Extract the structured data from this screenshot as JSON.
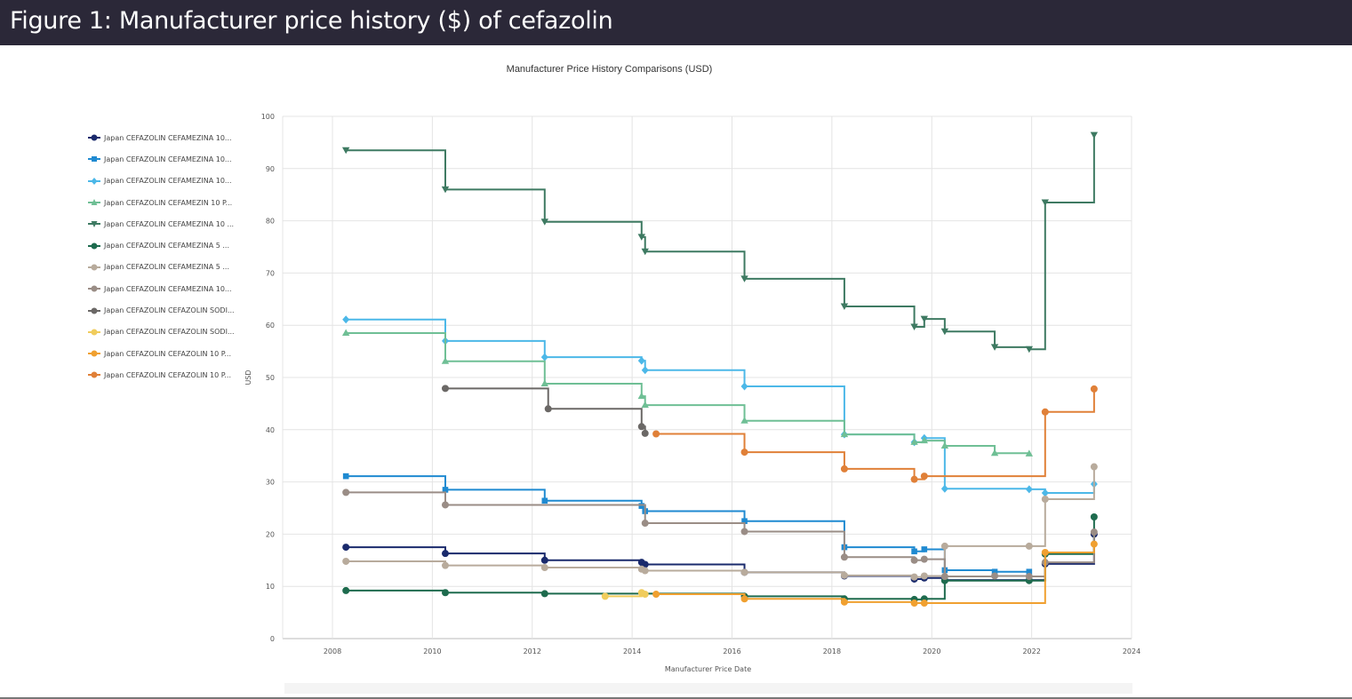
{
  "header": {
    "title": "Figure 1: Manufacturer price history ($) of cefazolin"
  },
  "chart_data": {
    "type": "line",
    "step": "after",
    "title": "Manufacturer Price History Comparisons (USD)",
    "xlabel": "Manufacturer Price Date",
    "ylabel": "USD",
    "xlim": [
      2007,
      2024
    ],
    "ylim": [
      0,
      100
    ],
    "xticks": [
      2008,
      2010,
      2012,
      2014,
      2016,
      2018,
      2020,
      2022,
      2024
    ],
    "yticks": [
      0,
      10,
      20,
      30,
      40,
      50,
      60,
      70,
      80,
      90,
      100
    ],
    "grid": true,
    "legend_position": "left",
    "series": [
      {
        "name": "Japan CEFAZOLIN CEFAMEZINA 10...",
        "color": "#1a2a6c",
        "marker": "circle",
        "x": [
          2008.27,
          2010.26,
          2012.25,
          2014.19,
          2014.26,
          2016.25,
          2018.25,
          2019.65,
          2019.85,
          2020.26,
          2021.95,
          2022.27,
          2023.25
        ],
        "y": [
          17.5,
          16.3,
          15.0,
          14.6,
          14.2,
          12.7,
          12.0,
          11.4,
          11.6,
          11.2,
          11.2,
          14.3,
          20.0
        ]
      },
      {
        "name": "Japan CEFAZOLIN CEFAMEZINA 10...",
        "color": "#1f8ad1",
        "marker": "square",
        "x": [
          2008.27,
          2010.26,
          2012.25,
          2014.19,
          2014.26,
          2016.25,
          2018.25,
          2019.65,
          2019.85,
          2020.26,
          2021.26,
          2021.95
        ],
        "y": [
          31.1,
          28.5,
          26.4,
          25.4,
          24.4,
          22.5,
          17.5,
          16.7,
          17.1,
          13.1,
          12.8,
          12.8
        ]
      },
      {
        "name": "Japan CEFAZOLIN CEFAMEZINA 10...",
        "color": "#4cb8e8",
        "marker": "diamond",
        "x": [
          2008.27,
          2010.26,
          2012.25,
          2014.19,
          2014.26,
          2016.25,
          2018.25,
          2019.65,
          2019.85,
          2020.26,
          2021.95,
          2022.27,
          2023.25
        ],
        "y": [
          61.1,
          57.0,
          53.9,
          53.2,
          51.4,
          48.3,
          39.1,
          37.6,
          38.4,
          28.7,
          28.6,
          27.9,
          29.6
        ]
      },
      {
        "name": "Japan CEFAZOLIN CEFAMEZIN 10 P...",
        "color": "#6fbf95",
        "marker": "triangle-up",
        "x": [
          2008.27,
          2010.26,
          2012.25,
          2014.19,
          2014.26,
          2016.25,
          2018.25,
          2019.65,
          2019.85,
          2020.26,
          2021.26,
          2021.95
        ],
        "y": [
          58.5,
          53.1,
          48.8,
          46.4,
          44.7,
          41.7,
          39.1,
          37.6,
          37.9,
          36.9,
          35.5,
          35.4
        ]
      },
      {
        "name": "Japan CEFAZOLIN CEFAMEZINA 10 ...",
        "color": "#3e7a62",
        "marker": "triangle-down",
        "x": [
          2008.27,
          2010.26,
          2012.25,
          2014.19,
          2014.26,
          2016.25,
          2018.25,
          2019.65,
          2019.85,
          2020.26,
          2021.26,
          2021.95,
          2022.27,
          2023.25
        ],
        "y": [
          93.5,
          86.0,
          79.8,
          76.9,
          74.1,
          68.9,
          63.6,
          59.7,
          61.2,
          58.8,
          55.8,
          55.4,
          83.5,
          96.4
        ]
      },
      {
        "name": "Japan CEFAZOLIN CEFAMEZINA 5 ...",
        "color": "#1e6b4e",
        "marker": "circle",
        "x": [
          2008.27,
          2010.26,
          2012.25,
          2016.25,
          2018.25,
          2019.65,
          2019.85,
          2020.26,
          2021.95,
          2022.27,
          2023.25
        ],
        "y": [
          9.2,
          8.8,
          8.6,
          8.1,
          7.6,
          7.5,
          7.6,
          11.1,
          11.1,
          16.2,
          23.3
        ]
      },
      {
        "name": "Japan CEFAZOLIN CEFAMEZINA 5 ...",
        "color": "#b8ab9c",
        "marker": "circle",
        "x": [
          2008.27,
          2010.26,
          2012.25,
          2014.19,
          2014.26,
          2016.25,
          2018.25,
          2019.65,
          2019.85,
          2020.26,
          2021.95,
          2022.27,
          2023.25
        ],
        "y": [
          14.8,
          14.0,
          13.6,
          13.3,
          13.0,
          12.7,
          12.1,
          11.8,
          12.0,
          17.7,
          17.7,
          26.7,
          32.9
        ]
      },
      {
        "name": "Japan CEFAZOLIN CEFAMEZINA 10...",
        "color": "#9a8d86",
        "marker": "circle",
        "x": [
          2008.27,
          2010.26,
          2014.26,
          2016.25,
          2018.25,
          2019.65,
          2019.85,
          2020.26,
          2021.26,
          2021.95,
          2022.27,
          2023.25
        ],
        "y": [
          28.0,
          25.6,
          22.1,
          20.5,
          15.6,
          15.0,
          15.2,
          11.9,
          12.0,
          11.9,
          14.6,
          20.4
        ]
      },
      {
        "name": "Japan CEFAZOLIN CEFAZOLIN SODI...",
        "color": "#6b6866",
        "marker": "circle",
        "x": [
          2010.26,
          2012.32,
          2014.19,
          2014.26
        ],
        "y": [
          47.9,
          44.0,
          40.6,
          39.3
        ]
      },
      {
        "name": "Japan CEFAZOLIN CEFAZOLIN SODI...",
        "color": "#f0cc5c",
        "marker": "circle",
        "x": [
          2013.46,
          2014.19,
          2014.26
        ],
        "y": [
          8.1,
          8.8,
          8.5
        ]
      },
      {
        "name": "Japan CEFAZOLIN CEFAZOLIN 10 P...",
        "color": "#f0a030",
        "marker": "circle",
        "x": [
          2014.48,
          2016.25,
          2018.25,
          2019.65,
          2019.85,
          2022.27,
          2023.25
        ],
        "y": [
          8.5,
          7.6,
          7.0,
          6.8,
          6.8,
          16.5,
          18.1
        ]
      },
      {
        "name": "Japan CEFAZOLIN CEFAZOLIN 10 P...",
        "color": "#e08038",
        "marker": "circle",
        "x": [
          2014.48,
          2016.25,
          2018.25,
          2019.65,
          2019.85,
          2022.27,
          2023.25
        ],
        "y": [
          39.2,
          35.7,
          32.5,
          30.5,
          31.1,
          43.4,
          47.8
        ]
      }
    ]
  }
}
